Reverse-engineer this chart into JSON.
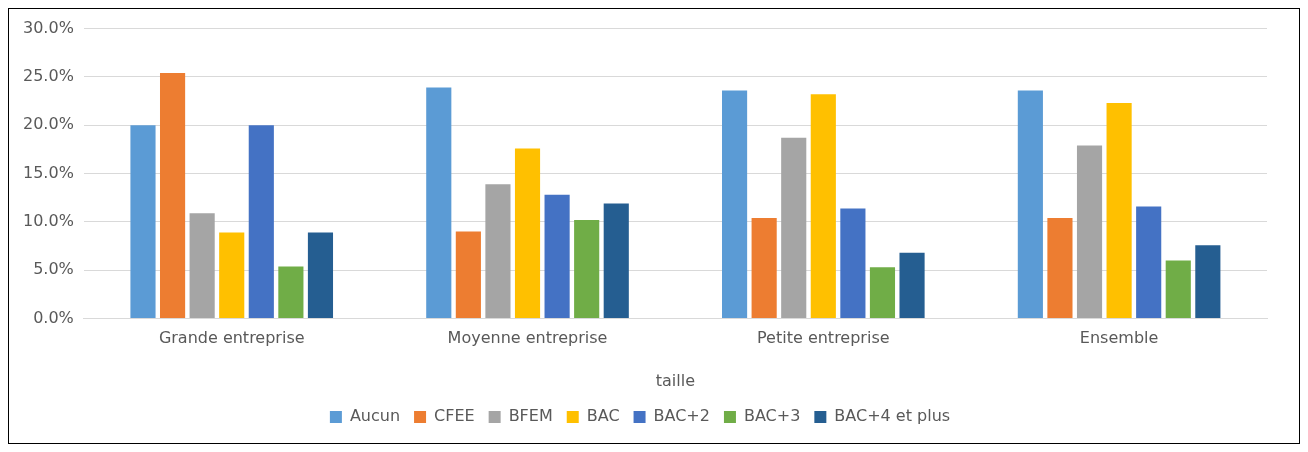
{
  "chart_data": {
    "type": "bar",
    "xlabel": "taille",
    "categories": [
      "Grande entreprise",
      "Moyenne entreprise",
      "Petite entreprise",
      "Ensemble"
    ],
    "series": [
      {
        "name": "Aucun",
        "color": "#5b9bd5",
        "values": [
          20.0,
          23.9,
          23.6,
          23.6
        ]
      },
      {
        "name": "CFEE",
        "color": "#ed7d31",
        "values": [
          25.4,
          9.0,
          10.4,
          10.4
        ]
      },
      {
        "name": "BFEM",
        "color": "#a5a5a5",
        "values": [
          10.9,
          13.9,
          18.7,
          17.9
        ]
      },
      {
        "name": "BAC",
        "color": "#ffc000",
        "values": [
          8.9,
          17.6,
          23.2,
          22.3
        ]
      },
      {
        "name": "BAC+2",
        "color": "#4472c4",
        "values": [
          20.0,
          12.8,
          11.4,
          11.6
        ]
      },
      {
        "name": "BAC+3",
        "color": "#70ad47",
        "values": [
          5.4,
          10.2,
          5.3,
          6.0
        ]
      },
      {
        "name": "BAC+4 et plus",
        "color": "#255e91",
        "values": [
          8.9,
          11.9,
          6.8,
          7.6
        ]
      }
    ],
    "ylim": [
      0,
      30
    ],
    "yticks": [
      {
        "value": 0,
        "label": "0.0%"
      },
      {
        "value": 5,
        "label": "5.0%"
      },
      {
        "value": 10,
        "label": "10.0%"
      },
      {
        "value": 15,
        "label": "15.0%"
      },
      {
        "value": 20,
        "label": "20.0%"
      },
      {
        "value": 25,
        "label": "25.0%"
      },
      {
        "value": 30,
        "label": "30.0%"
      }
    ],
    "grid": "y",
    "legend": "bottom"
  }
}
